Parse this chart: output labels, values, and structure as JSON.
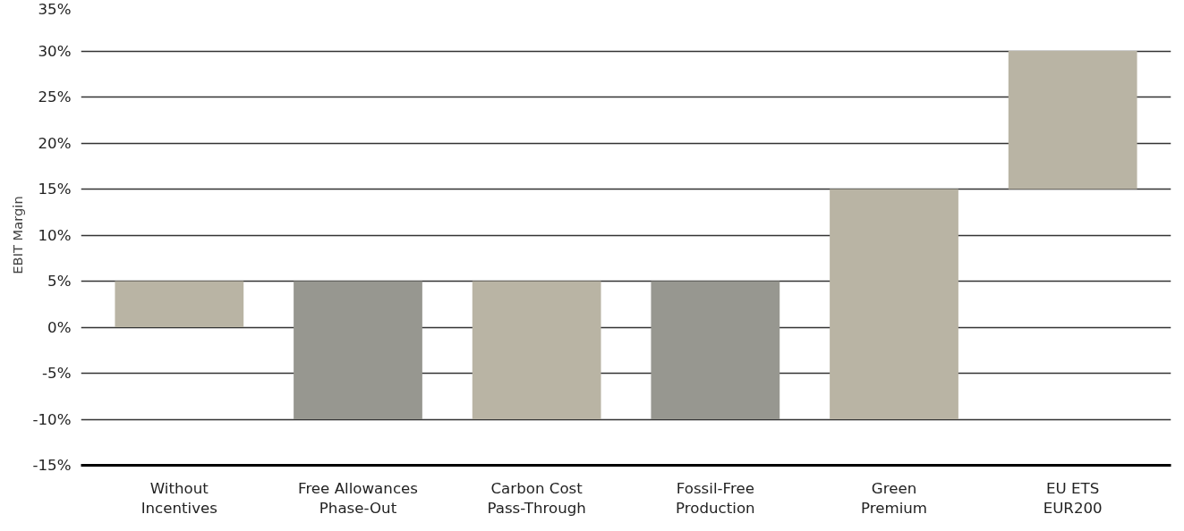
{
  "chart_data": {
    "type": "bar",
    "ylabel": "EBIT Margin",
    "categories": [
      "Without\nIncentives",
      "Free Allowances\nPhase-Out",
      "Carbon Cost\nPass-Through",
      "Fossil-Free\nProduction",
      "Green\nPremium",
      "EU ETS\nEUR200"
    ],
    "values": [
      5,
      -15,
      15,
      -15,
      25,
      15
    ],
    "base": [
      0,
      5,
      -10,
      5,
      -10,
      15
    ],
    "colors": [
      "#b9b4a4",
      "#979790",
      "#b9b4a4",
      "#979790",
      "#b9b4a4",
      "#b9b4a4"
    ],
    "ylim": [
      -15,
      35
    ],
    "yticks": [
      {
        "value": -15,
        "label": "-15%"
      },
      {
        "value": -10,
        "label": "-10%"
      },
      {
        "value": -5,
        "label": "-5%"
      },
      {
        "value": 0,
        "label": "0%"
      },
      {
        "value": 5,
        "label": "5%"
      },
      {
        "value": 10,
        "label": "10%"
      },
      {
        "value": 15,
        "label": "15%"
      },
      {
        "value": 20,
        "label": "20%"
      },
      {
        "value": 25,
        "label": "25%"
      },
      {
        "value": 30,
        "label": "30%"
      },
      {
        "value": 35,
        "label": "35%"
      }
    ],
    "grid": "y"
  }
}
